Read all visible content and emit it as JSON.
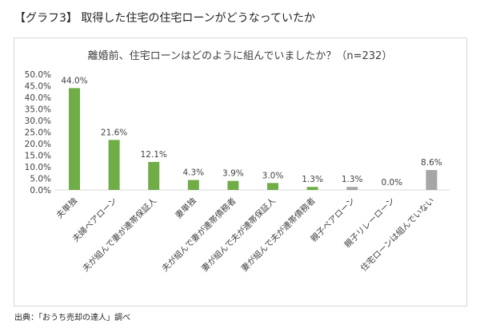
{
  "heading": "【グラフ3】 取得した住宅の住宅ローンがどうなっていたか",
  "source": "出典：「おうち売却の達人」調べ",
  "chart_data": {
    "type": "bar",
    "title": "離婚前、住宅ローンはどのように組んでいましたか？（n=232）",
    "categories": [
      "夫単独",
      "夫婦ペアローン",
      "夫が組んで妻が連帯保証人",
      "妻単独",
      "夫が組んで妻が連帯債務者",
      "妻が組んで夫が連帯保証人",
      "妻が組んで夫が連帯債務者",
      "親子ペアローン",
      "親子リレーローン",
      "住宅ローンは組んでいない"
    ],
    "values": [
      44.0,
      21.6,
      12.1,
      4.3,
      3.9,
      3.0,
      1.3,
      1.3,
      0.0,
      8.6
    ],
    "data_labels": [
      "44.0%",
      "21.6%",
      "12.1%",
      "4.3%",
      "3.9%",
      "3.0%",
      "1.3%",
      "1.3%",
      "0.0%",
      "8.6%"
    ],
    "bar_colors": [
      "#70ad47",
      "#70ad47",
      "#70ad47",
      "#70ad47",
      "#70ad47",
      "#70ad47",
      "#70ad47",
      "#a6a6a6",
      "#a6a6a6",
      "#a6a6a6"
    ],
    "ylim": [
      0,
      50
    ],
    "yticks": [
      "0.0%",
      "5.0%",
      "10.0%",
      "15.0%",
      "20.0%",
      "25.0%",
      "30.0%",
      "35.0%",
      "40.0%",
      "45.0%",
      "50.0%"
    ],
    "xlabel": "",
    "ylabel": "",
    "grid": false,
    "legend": "none"
  }
}
